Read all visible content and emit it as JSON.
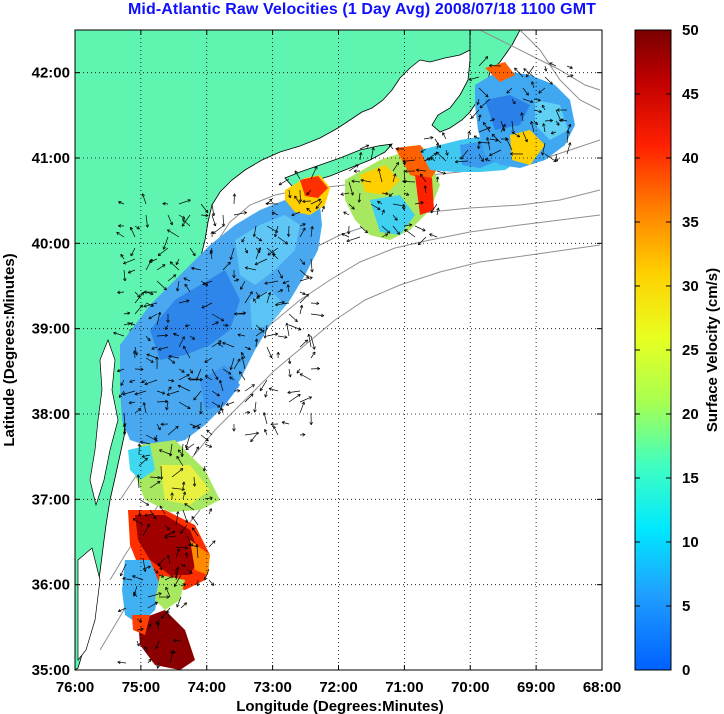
{
  "title": "Mid-Atlantic Raw Velocities (1 Day Avg) 2008/07/18 1100 GMT",
  "map": {
    "lon_range": [
      -76,
      -68
    ],
    "lat_range": [
      35,
      42.5
    ],
    "lon_ticks": [
      "76:00",
      "75:00",
      "74:00",
      "73:00",
      "72:00",
      "71:00",
      "70:00",
      "69:00",
      "68:00"
    ],
    "lat_ticks": [
      "35:00",
      "36:00",
      "37:00",
      "38:00",
      "39:00",
      "40:00",
      "41:00",
      "42:00"
    ],
    "xlabel": "Longitude (Degrees:Minutes)",
    "ylabel": "Latitude (Degrees:Minutes)",
    "grid": "dotted",
    "land_color": "#5ff5b0",
    "coast_color": "#000000",
    "bathymetry_color": "#909090"
  },
  "colorbar": {
    "label": "Surface Velocity (cm/s)",
    "min": 0,
    "max": 50,
    "ticks": [
      "0",
      "5",
      "10",
      "15",
      "20",
      "25",
      "30",
      "35",
      "40",
      "45",
      "50"
    ],
    "colormap": "jet"
  }
}
